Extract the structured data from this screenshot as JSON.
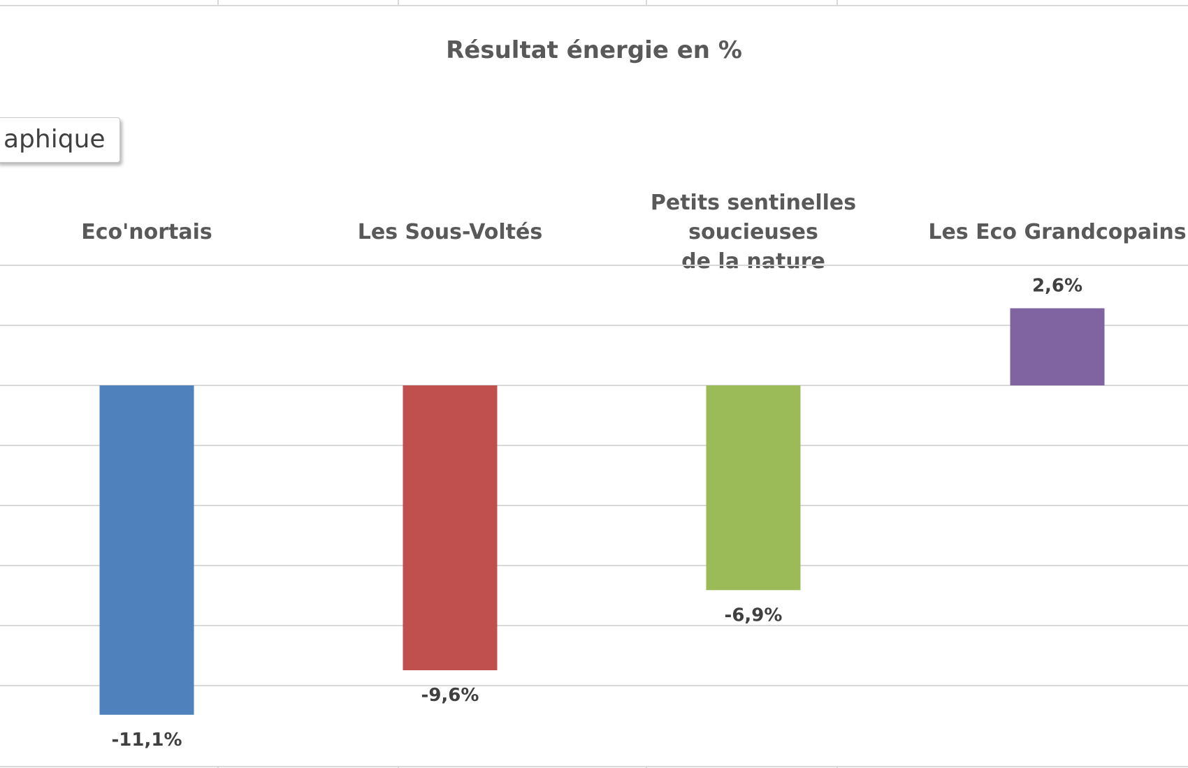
{
  "chart_data": {
    "type": "bar",
    "title": "Résultat énergie en %",
    "categories": [
      "Eco'nortais",
      "Les Sous-Voltés",
      "Petits sentinelles soucieuses de la nature",
      "Les Eco Grandcopains"
    ],
    "category_lines": [
      [
        "Eco'nortais"
      ],
      [
        "Les Sous-Voltés"
      ],
      [
        "Petits sentinelles soucieuses",
        "de la nature"
      ],
      [
        "Les Eco Grandcopains"
      ]
    ],
    "values": [
      -11.1,
      -9.6,
      -6.9,
      2.6
    ],
    "data_labels": [
      "-11,1%",
      "-9,6%",
      "-6,9%",
      "2,6%"
    ],
    "colors": [
      "#4f81bd",
      "#c0504d",
      "#9bbb59",
      "#8064a2"
    ],
    "unit": "%",
    "x_axis_position": "top",
    "grid": true
  },
  "ui": {
    "tooltip_text": "aphique"
  }
}
